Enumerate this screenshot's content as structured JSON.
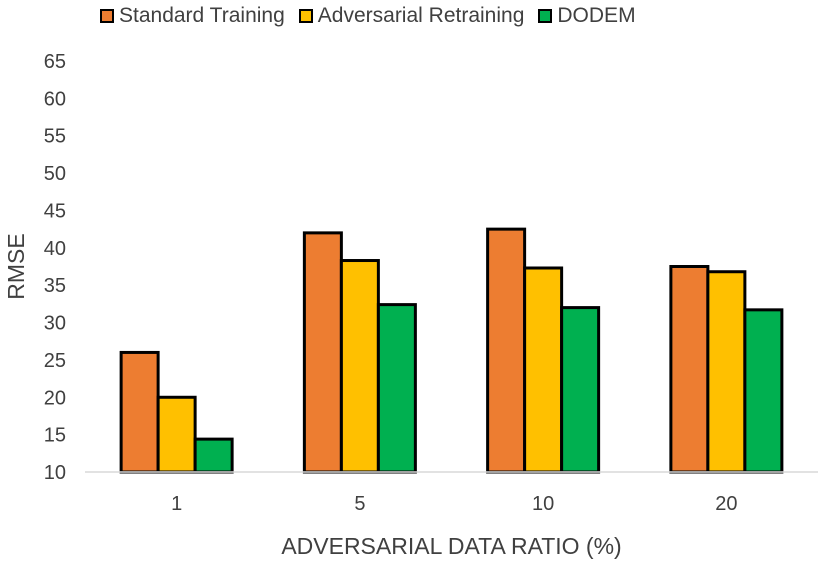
{
  "chart_data": {
    "type": "bar",
    "title": "",
    "xlabel": "ADVERSARIAL DATA RATIO (%)",
    "ylabel": "RMSE",
    "categories": [
      "1",
      "5",
      "10",
      "20"
    ],
    "ylim": [
      10,
      65
    ],
    "yticks": [
      "10",
      "15",
      "20",
      "25",
      "30",
      "35",
      "40",
      "45",
      "50",
      "55",
      "60",
      "65"
    ],
    "grid": false,
    "legend_position": "top",
    "series": [
      {
        "name": "Standard Training",
        "color": "#ED7D31",
        "values": [
          26,
          42,
          42.5,
          37.5
        ]
      },
      {
        "name": "Adversarial Retraining",
        "color": "#FFC000",
        "values": [
          20,
          38.3,
          37.3,
          36.8
        ]
      },
      {
        "name": "DODEM",
        "color": "#00B050",
        "values": [
          14.4,
          32.4,
          32,
          31.7
        ]
      }
    ]
  }
}
